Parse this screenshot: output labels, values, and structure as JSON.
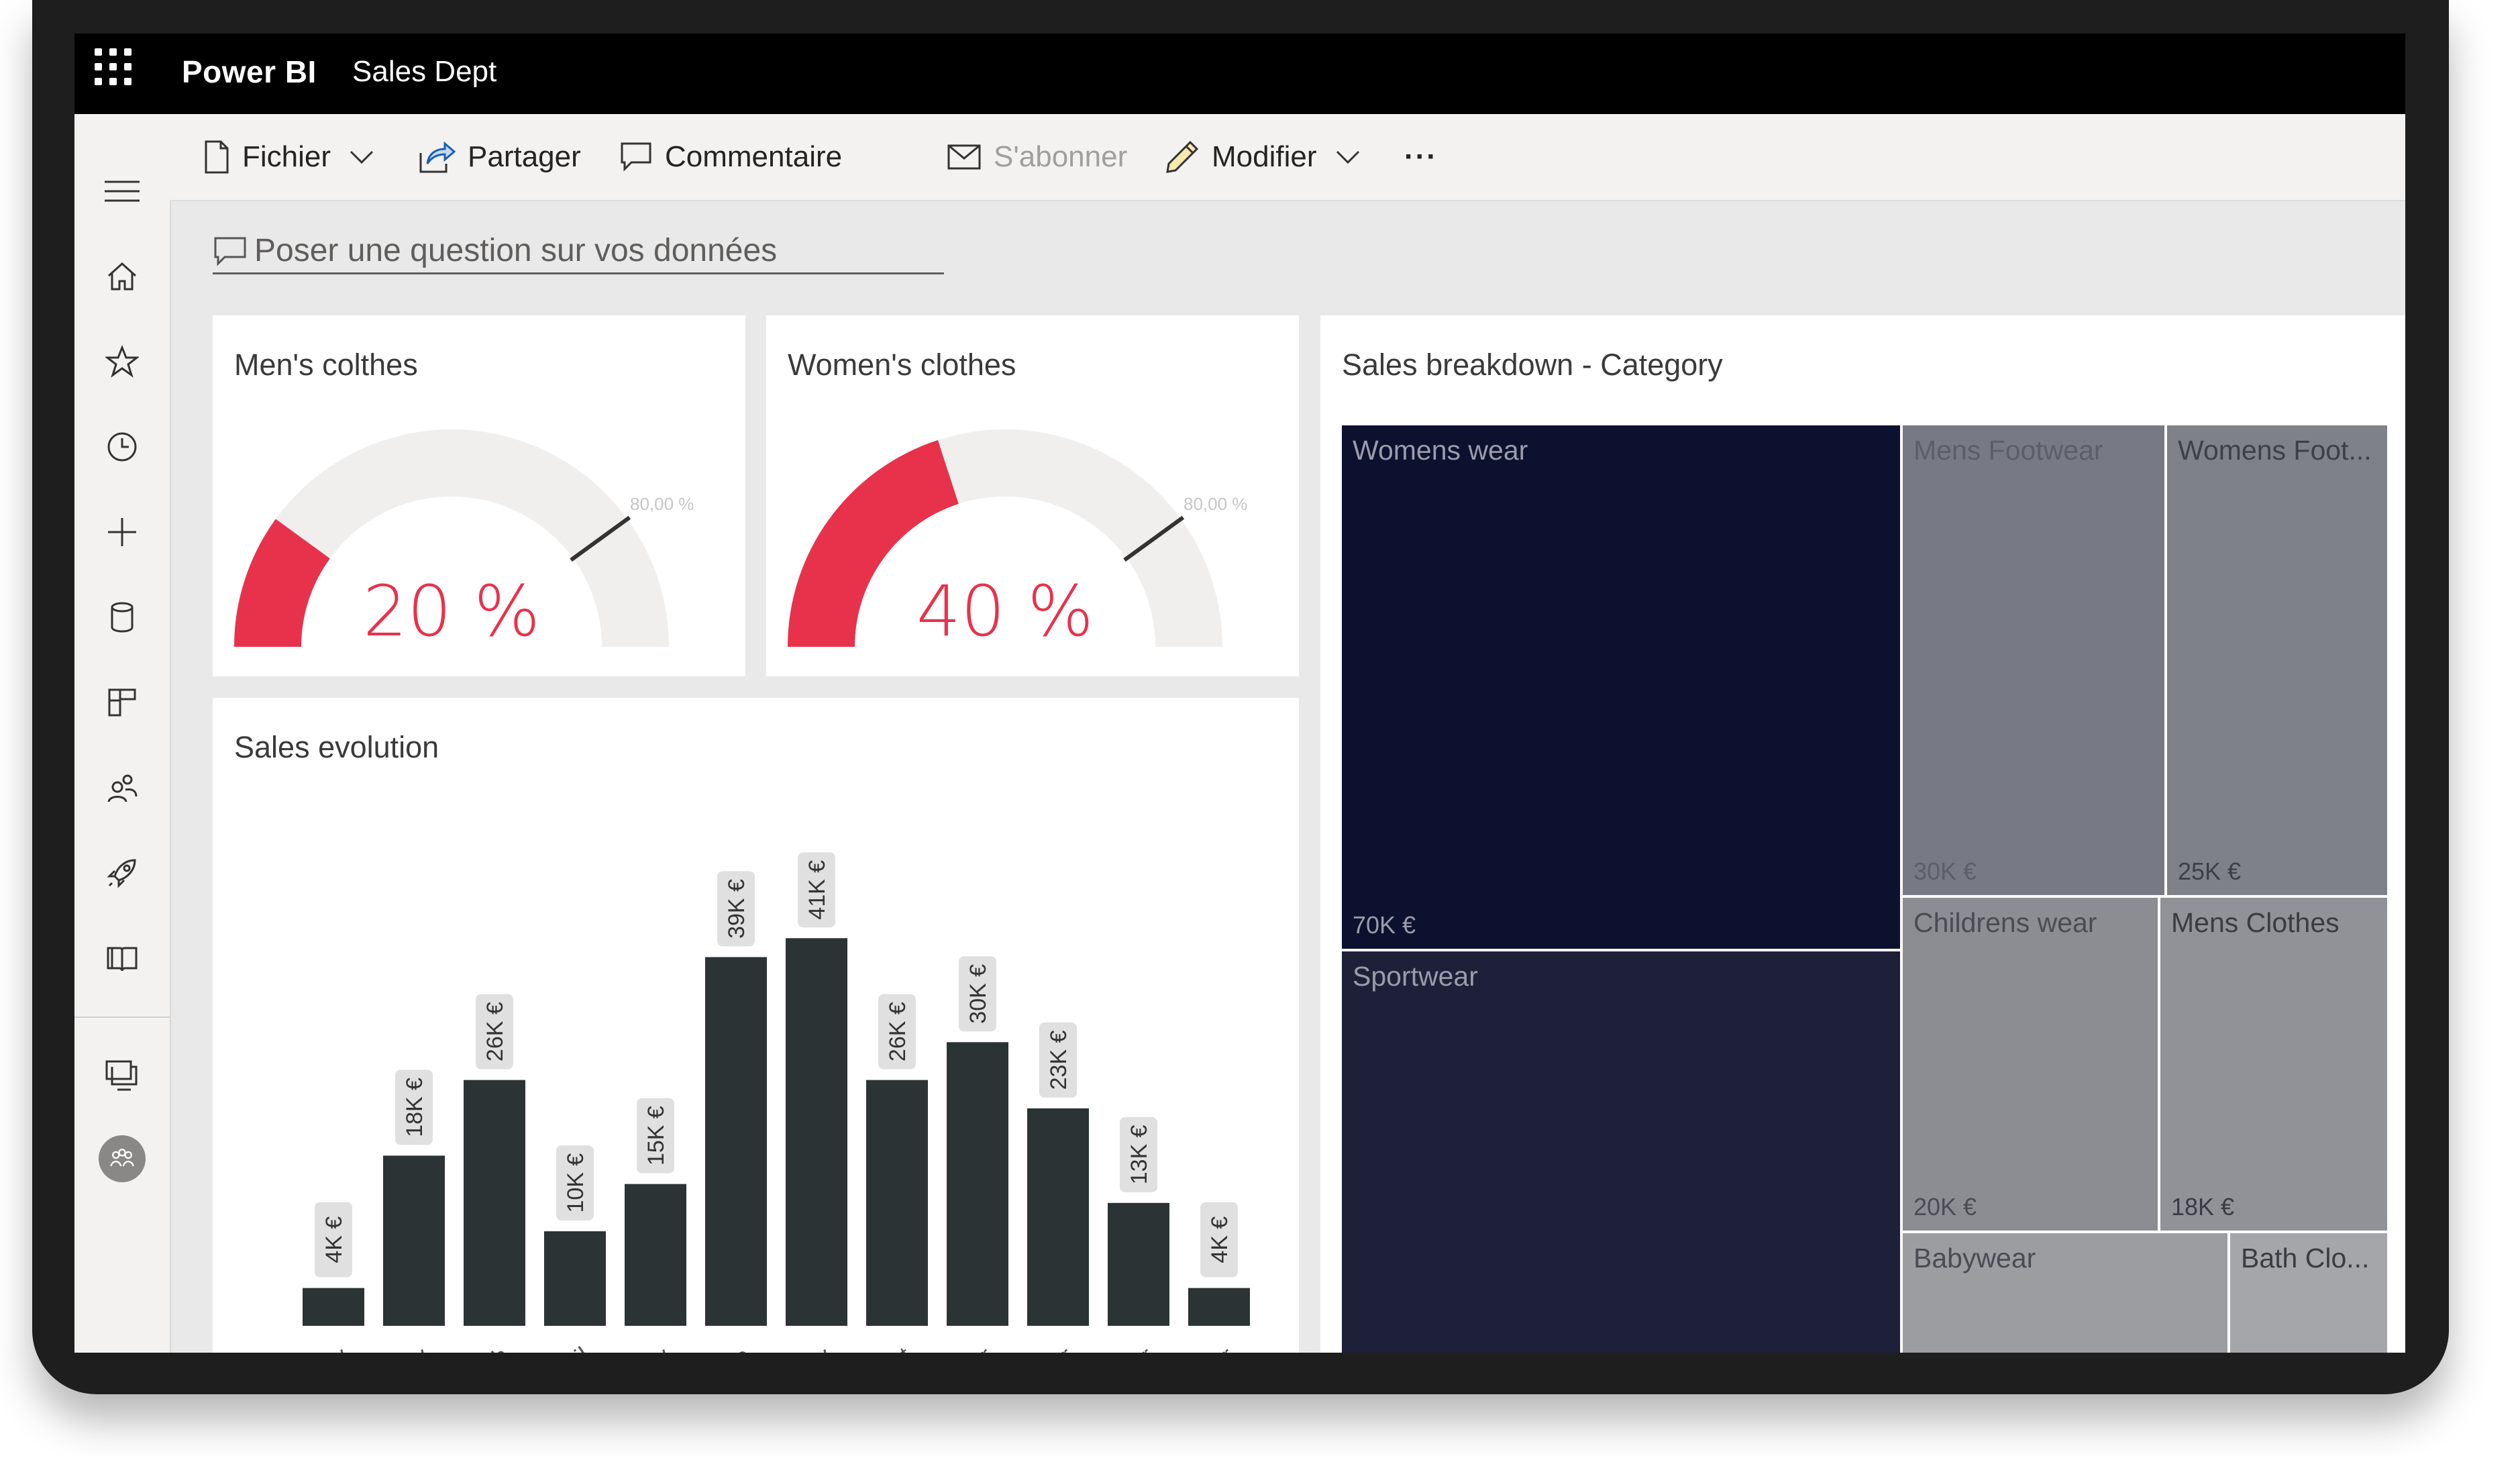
{
  "topbar": {
    "app_name": "Power BI",
    "workspace": "Sales Dept"
  },
  "actionbar": {
    "file": "Fichier",
    "share": "Partager",
    "comment": "Commentaire",
    "subscribe": "S'abonner",
    "edit": "Modifier",
    "more": "···"
  },
  "qa": {
    "placeholder": "Poser une question sur vos données"
  },
  "sidebar": {
    "icons": [
      "menu-icon",
      "home-icon",
      "star-icon",
      "clock-icon",
      "plus-icon",
      "database-icon",
      "apps-icon",
      "people-icon",
      "rocket-icon",
      "book-icon",
      "workspaces-icon",
      "avatar-icon"
    ]
  },
  "gauges": [
    {
      "title": "Men's colthes",
      "value_label": "20 %",
      "value": 0.2,
      "target_label": "80,00 %",
      "target": 0.8
    },
    {
      "title": "Women's clothes",
      "value_label": "40 %",
      "value": 0.4,
      "target_label": "80,00 %",
      "target": 0.8
    }
  ],
  "colors": {
    "accent": "#e8324b",
    "gauge_track": "#f0efee",
    "bar": "#2b3335",
    "label_pill": "#e0e0e0"
  },
  "chart_data": {
    "type": "bar",
    "title": "Sales evolution",
    "categories": [
      "January",
      "February",
      "March",
      "April",
      "May",
      "June",
      "July",
      "August",
      "September",
      "October",
      "November",
      "December"
    ],
    "category_labels_visible": [
      "nuary",
      "bruary",
      "March",
      "April",
      "May",
      "June",
      "July",
      "August",
      "ember",
      "ctober",
      "ember",
      "ember"
    ],
    "values": [
      4,
      18,
      26,
      10,
      15,
      39,
      41,
      26,
      30,
      23,
      13,
      4
    ],
    "data_labels": [
      "4K €",
      "18K €",
      "26K €",
      "10K €",
      "15K €",
      "39K €",
      "41K €",
      "26K €",
      "30K €",
      "23K €",
      "13K €",
      "4K €"
    ],
    "ylim": [
      0,
      44
    ],
    "grid": false
  },
  "treemap": {
    "title": "Sales breakdown - Category",
    "items": [
      {
        "label": "Womens wear",
        "value_label": "70K €",
        "color": "#0d1130"
      },
      {
        "label": "Sportwear",
        "value_label": "",
        "color": "#1d2038"
      },
      {
        "label": "Mens Footwear",
        "value_label": "30K €",
        "color": "#777985"
      },
      {
        "label": "Womens Foot...",
        "value_label": "25K €",
        "color": "#7f8189"
      },
      {
        "label": "Childrens wear",
        "value_label": "20K €",
        "color": "#8b8d93"
      },
      {
        "label": "Mens Clothes",
        "value_label": "18K €",
        "color": "#909297"
      },
      {
        "label": "Babywear",
        "value_label": "",
        "color": "#9c9da1"
      },
      {
        "label": "Bath Clo...",
        "value_label": "",
        "color": "#a5a6a9"
      }
    ]
  }
}
